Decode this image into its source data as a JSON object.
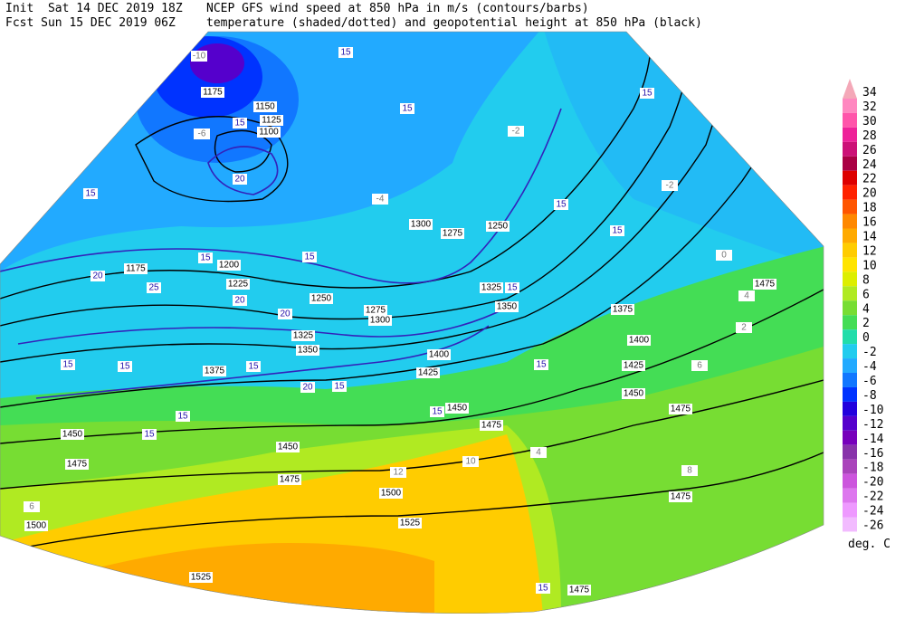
{
  "header": {
    "init": "Init  Sat 14 DEC 2019 18Z",
    "fcst": "Fcst Sun 15 DEC 2019 06Z",
    "title": "NCEP GFS wind speed at 850 hPa in m/s (contours/barbs)",
    "subtitle": "temperature (shaded/dotted) and geopotential height at 850 hPa (black)"
  },
  "colorbar": {
    "values": [
      34,
      32,
      30,
      28,
      26,
      24,
      22,
      20,
      18,
      16,
      14,
      12,
      10,
      8,
      6,
      4,
      2,
      0,
      -2,
      -4,
      -6,
      -8,
      -10,
      -12,
      -14,
      -16,
      -18,
      -20,
      -22,
      -24,
      -26
    ],
    "colors": [
      "#f4a8b8",
      "#ff88c0",
      "#ff55aa",
      "#ee2299",
      "#cc1177",
      "#aa0044",
      "#dd0000",
      "#ff2200",
      "#ff5500",
      "#ff8800",
      "#ffaa00",
      "#ffcc00",
      "#ffe400",
      "#ddee00",
      "#b0ea22",
      "#77dd33",
      "#44dd55",
      "#22ddaa",
      "#22ccee",
      "#22aaff",
      "#1177ff",
      "#0033ff",
      "#2200dd",
      "#5500cc",
      "#7700bb",
      "#8833aa",
      "#aa44bb",
      "#cc55dd",
      "#dd77ee",
      "#ee99ff",
      "#f2bbff"
    ],
    "unit": "deg. C"
  },
  "map": {
    "height_labels": [
      1175,
      1150,
      1125,
      1100,
      1175,
      1200,
      1225,
      1250,
      1275,
      1300,
      1325,
      1350,
      1375,
      1400,
      1425,
      1450,
      1475,
      1450,
      1475,
      1450,
      1475,
      1500,
      1525,
      1500,
      1525,
      1475,
      1475,
      1475,
      1450,
      1425,
      1400,
      1375,
      1350,
      1325,
      1300,
      1275,
      1250,
      1475
    ],
    "wind_labels": [
      15,
      15,
      15,
      20,
      15,
      20,
      25,
      20,
      20,
      15,
      15,
      15,
      15,
      15,
      20,
      15,
      15,
      15,
      15,
      15,
      15,
      15,
      15,
      15,
      15
    ],
    "temperature_labels": [
      -10,
      -6,
      -4,
      -2,
      0,
      2,
      4,
      6,
      8,
      10,
      12,
      -2,
      4,
      6
    ]
  }
}
